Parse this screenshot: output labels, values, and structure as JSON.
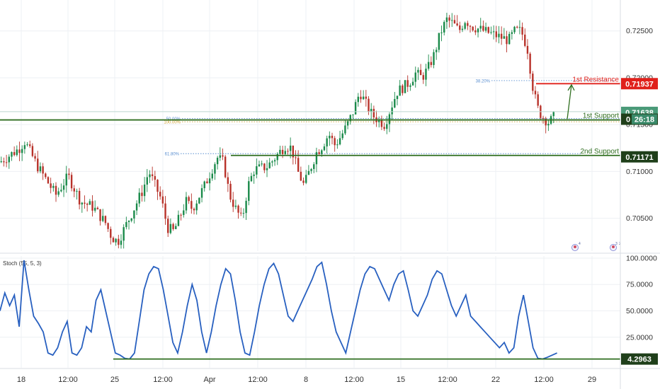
{
  "chart_data": [
    {
      "type": "candlestick",
      "panel": "price",
      "y_axis": {
        "ticks": [
          0.725,
          0.72,
          0.715,
          0.71,
          0.705
        ],
        "tick_labels": [
          "0.72500",
          "0.72000",
          "0.71500",
          "0.71000",
          "0.70500"
        ],
        "ylim": [
          0.7015,
          0.7283
        ]
      },
      "x_axis": {
        "tick_labels": [
          "18",
          "12:00",
          "25",
          "12:00",
          "Apr",
          "12:00",
          "8",
          "12:00",
          "15",
          "12:00",
          "22",
          "12:00",
          "29"
        ],
        "xlim": [
          0,
          100
        ]
      },
      "levels": [
        {
          "name": "1st Resistance",
          "label": "1st Resistance",
          "value": 0.71937,
          "value_label": "0.71937",
          "color": "#e0201b"
        },
        {
          "name": "1st Support",
          "label": "1st Support",
          "value": 0.7155,
          "value_label": "26:18",
          "prefix": "0",
          "color": "#2f6e1f"
        },
        {
          "name": "2nd Support",
          "label": "2nd Support",
          "value": 0.71171,
          "value_label": "0.71171",
          "color": "#2f6e1f"
        }
      ],
      "last_price": {
        "value": 0.71638,
        "label": "0.71638",
        "color": "#4a9a78"
      },
      "fib_levels": [
        {
          "label": "50.00%",
          "value": 0.71565,
          "color": "#5a8fd0"
        },
        {
          "label": "100.00%",
          "value": 0.7153,
          "color": "#d0a030"
        },
        {
          "label": "61.80%",
          "value": 0.7119,
          "color": "#5a8fd0"
        },
        {
          "label": "38.20%",
          "value": 0.7197,
          "color": "#5a8fd0"
        }
      ],
      "arrow": {
        "from": [
          89.5,
          0.7156
        ],
        "to": [
          89.5,
          0.7194
        ],
        "color": "#2f6e1f"
      },
      "candles": []
    },
    {
      "type": "line",
      "panel": "oscillator",
      "title": "Stoch (55, 5, 3)",
      "y_axis": {
        "ticks": [
          100,
          75,
          50,
          25
        ],
        "tick_labels": [
          "100.0000",
          "75.0000",
          "50.0000",
          "25.0000"
        ],
        "ylim": [
          -4,
          102
        ]
      },
      "support": {
        "value": 4.2963,
        "label": "4.2963",
        "color": "#2f6e1f"
      },
      "series": [
        {
          "values": [
            50,
            67,
            55,
            65,
            35,
            98,
            70,
            45,
            38,
            30,
            10,
            8,
            15,
            30,
            40,
            10,
            8,
            15,
            35,
            30,
            60,
            70,
            50,
            30,
            10,
            8,
            5,
            4.3,
            10,
            40,
            70,
            85,
            92,
            90,
            70,
            45,
            20,
            10,
            30,
            55,
            75,
            60,
            30,
            10,
            30,
            55,
            75,
            90,
            85,
            60,
            30,
            10,
            8,
            30,
            55,
            75,
            90,
            95,
            85,
            65,
            45,
            40,
            50,
            60,
            70,
            80,
            92,
            96,
            75,
            50,
            30,
            20,
            10,
            30,
            50,
            70,
            85,
            92,
            90,
            80,
            70,
            60,
            75,
            85,
            88,
            70,
            50,
            45,
            55,
            65,
            80,
            88,
            85,
            70,
            55,
            45,
            55,
            65,
            45,
            40,
            35,
            30,
            25,
            20,
            15,
            20,
            10,
            15,
            45,
            65,
            40,
            15,
            5,
            4.3,
            6,
            8,
            10
          ]
        }
      ]
    }
  ],
  "indicator_icons": [
    "4",
    "3",
    "2"
  ]
}
